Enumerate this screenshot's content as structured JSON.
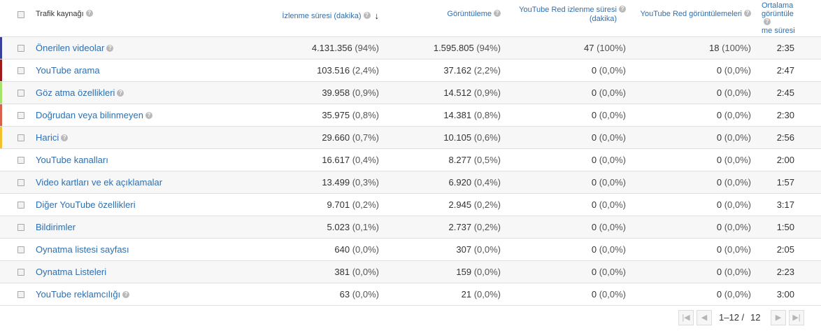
{
  "header": {
    "source_label": "Trafik kaynağı",
    "watch_time": "İzlenme süresi (dakika)",
    "views": "Görüntüleme",
    "red_watch_line1": "YouTube Red izlenme süresi",
    "red_watch_line2": "(dakika)",
    "red_views": "YouTube Red görüntülemeleri",
    "avg_line1": "Ortalama",
    "avg_line2": "görüntüle",
    "avg_line3": "me süresi"
  },
  "rows": [
    {
      "name": "Önerilen videolar",
      "help": true,
      "color": "#3a3f9e",
      "watch": "4.131.356",
      "watch_pct": "(94%)",
      "views": "1.595.805",
      "views_pct": "(94%)",
      "red_watch": "47",
      "red_watch_pct": "(100%)",
      "red_views": "18",
      "red_views_pct": "(100%)",
      "avg": "2:35"
    },
    {
      "name": "YouTube arama",
      "help": false,
      "color": "#9c1c1c",
      "watch": "103.516",
      "watch_pct": "(2,4%)",
      "views": "37.162",
      "views_pct": "(2,2%)",
      "red_watch": "0",
      "red_watch_pct": "(0,0%)",
      "red_views": "0",
      "red_views_pct": "(0,0%)",
      "avg": "2:47"
    },
    {
      "name": "Göz atma özellikleri",
      "help": true,
      "color": "#a6e36b",
      "watch": "39.958",
      "watch_pct": "(0,9%)",
      "views": "14.512",
      "views_pct": "(0,9%)",
      "red_watch": "0",
      "red_watch_pct": "(0,0%)",
      "red_views": "0",
      "red_views_pct": "(0,0%)",
      "avg": "2:45"
    },
    {
      "name": "Doğrudan veya bilinmeyen",
      "help": true,
      "color": "#d9604a",
      "watch": "35.975",
      "watch_pct": "(0,8%)",
      "views": "14.381",
      "views_pct": "(0,8%)",
      "red_watch": "0",
      "red_watch_pct": "(0,0%)",
      "red_views": "0",
      "red_views_pct": "(0,0%)",
      "avg": "2:30"
    },
    {
      "name": "Harici",
      "help": true,
      "color": "#f2c12e",
      "watch": "29.660",
      "watch_pct": "(0,7%)",
      "views": "10.105",
      "views_pct": "(0,6%)",
      "red_watch": "0",
      "red_watch_pct": "(0,0%)",
      "red_views": "0",
      "red_views_pct": "(0,0%)",
      "avg": "2:56"
    },
    {
      "name": "YouTube kanalları",
      "help": false,
      "color": "",
      "watch": "16.617",
      "watch_pct": "(0,4%)",
      "views": "8.277",
      "views_pct": "(0,5%)",
      "red_watch": "0",
      "red_watch_pct": "(0,0%)",
      "red_views": "0",
      "red_views_pct": "(0,0%)",
      "avg": "2:00"
    },
    {
      "name": "Video kartları ve ek açıklamalar",
      "help": false,
      "color": "",
      "watch": "13.499",
      "watch_pct": "(0,3%)",
      "views": "6.920",
      "views_pct": "(0,4%)",
      "red_watch": "0",
      "red_watch_pct": "(0,0%)",
      "red_views": "0",
      "red_views_pct": "(0,0%)",
      "avg": "1:57"
    },
    {
      "name": "Diğer YouTube özellikleri",
      "help": false,
      "color": "",
      "watch": "9.701",
      "watch_pct": "(0,2%)",
      "views": "2.945",
      "views_pct": "(0,2%)",
      "red_watch": "0",
      "red_watch_pct": "(0,0%)",
      "red_views": "0",
      "red_views_pct": "(0,0%)",
      "avg": "3:17"
    },
    {
      "name": "Bildirimler",
      "help": false,
      "color": "",
      "watch": "5.023",
      "watch_pct": "(0,1%)",
      "views": "2.737",
      "views_pct": "(0,2%)",
      "red_watch": "0",
      "red_watch_pct": "(0,0%)",
      "red_views": "0",
      "red_views_pct": "(0,0%)",
      "avg": "1:50"
    },
    {
      "name": "Oynatma listesi sayfası",
      "help": false,
      "color": "",
      "watch": "640",
      "watch_pct": "(0,0%)",
      "views": "307",
      "views_pct": "(0,0%)",
      "red_watch": "0",
      "red_watch_pct": "(0,0%)",
      "red_views": "0",
      "red_views_pct": "(0,0%)",
      "avg": "2:05"
    },
    {
      "name": "Oynatma Listeleri",
      "help": false,
      "color": "",
      "watch": "381",
      "watch_pct": "(0,0%)",
      "views": "159",
      "views_pct": "(0,0%)",
      "red_watch": "0",
      "red_watch_pct": "(0,0%)",
      "red_views": "0",
      "red_views_pct": "(0,0%)",
      "avg": "2:23"
    },
    {
      "name": "YouTube reklamcılığı",
      "help": true,
      "color": "",
      "watch": "63",
      "watch_pct": "(0,0%)",
      "views": "21",
      "views_pct": "(0,0%)",
      "red_watch": "0",
      "red_watch_pct": "(0,0%)",
      "red_views": "0",
      "red_views_pct": "(0,0%)",
      "avg": "3:00"
    }
  ],
  "pagination": {
    "range": "1–12 /",
    "total": "12",
    "first_icon": "first-page-icon",
    "prev_icon": "prev-page-icon",
    "next_icon": "next-page-icon",
    "last_icon": "last-page-icon"
  },
  "colors": {
    "link": "#2d6fb0",
    "sorted_header_arrow": "#222222"
  }
}
